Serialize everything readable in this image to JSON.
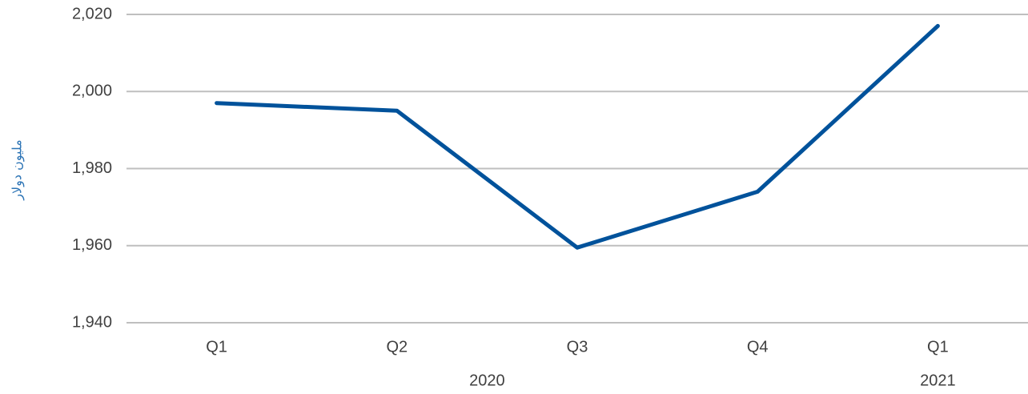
{
  "chart_data": {
    "type": "line",
    "categories": [
      "Q1",
      "Q2",
      "Q3",
      "Q4",
      "Q1"
    ],
    "groups": [
      {
        "label": "2020",
        "span": [
          0,
          3
        ]
      },
      {
        "label": "2021",
        "span": [
          4,
          4
        ]
      }
    ],
    "series": [
      {
        "values": [
          1997,
          1995,
          1959.5,
          1974,
          2017
        ]
      }
    ],
    "ylabel": "مليون دولار",
    "ylim": [
      1940,
      2020
    ],
    "yticks": [
      1940,
      1960,
      1980,
      2000,
      2020
    ],
    "ytick_labels": [
      "1,940",
      "1,960",
      "1,980",
      "2,000",
      "2,020"
    ],
    "grid": true,
    "line_color": "#00529B",
    "grid_color": "#BFBFBF",
    "ylabel_color": "#2E75B6"
  }
}
